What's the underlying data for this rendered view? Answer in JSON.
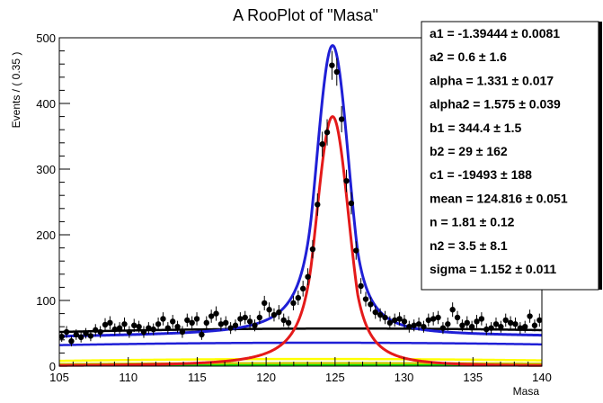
{
  "chart_data": {
    "type": "scatter",
    "title": "A RooPlot of \"Masa\"",
    "xlabel": "Masa",
    "ylabel": "Events / ( 0.35 )",
    "xlim": [
      105,
      140
    ],
    "ylim": [
      0,
      500
    ],
    "x_ticks": [
      "105",
      "110",
      "115",
      "120",
      "125",
      "130",
      "135",
      "140"
    ],
    "y_ticks": [
      "0",
      "100",
      "200",
      "300",
      "400",
      "500"
    ],
    "data": {
      "x": [
        105.175,
        105.525,
        105.875,
        106.225,
        106.575,
        106.925,
        107.275,
        107.625,
        107.975,
        108.325,
        108.675,
        109.025,
        109.375,
        109.725,
        110.075,
        110.425,
        110.775,
        111.125,
        111.475,
        111.825,
        112.175,
        112.525,
        112.875,
        113.225,
        113.575,
        113.925,
        114.275,
        114.625,
        114.975,
        115.325,
        115.675,
        116.025,
        116.375,
        116.725,
        117.075,
        117.425,
        117.775,
        118.125,
        118.475,
        118.825,
        119.175,
        119.525,
        119.875,
        120.225,
        120.575,
        120.925,
        121.275,
        121.625,
        121.975,
        122.325,
        122.675,
        123.025,
        123.375,
        123.725,
        124.075,
        124.425,
        124.775,
        125.125,
        125.475,
        125.825,
        126.175,
        126.525,
        126.875,
        127.225,
        127.575,
        127.925,
        128.275,
        128.625,
        128.975,
        129.325,
        129.675,
        130.025,
        130.375,
        130.725,
        131.075,
        131.425,
        131.775,
        132.125,
        132.475,
        132.825,
        133.175,
        133.525,
        133.875,
        134.225,
        134.575,
        134.925,
        135.275,
        135.625,
        135.975,
        136.325,
        136.675,
        137.025,
        137.375,
        137.725,
        138.075,
        138.425,
        138.775,
        139.125,
        139.475,
        139.825
      ],
      "y": [
        45,
        52,
        38,
        48,
        44,
        50,
        46,
        55,
        52,
        63,
        66,
        56,
        58,
        64,
        52,
        62,
        60,
        52,
        58,
        56,
        64,
        72,
        58,
        68,
        60,
        52,
        70,
        66,
        72,
        48,
        66,
        76,
        80,
        64,
        66,
        58,
        62,
        72,
        74,
        68,
        62,
        74,
        96,
        86,
        78,
        82,
        70,
        66,
        96,
        104,
        118,
        136,
        178,
        246,
        338,
        356,
        458,
        448,
        376,
        282,
        248,
        176,
        122,
        102,
        94,
        82,
        78,
        74,
        66,
        70,
        72,
        68,
        60,
        62,
        64,
        60,
        70,
        72,
        74,
        58,
        64,
        86,
        74,
        62,
        66,
        60,
        68,
        72,
        56,
        58,
        64,
        60,
        70,
        66,
        64,
        58,
        60,
        76,
        62,
        70
      ],
      "err": [
        8,
        9,
        8,
        8,
        8,
        8,
        8,
        9,
        9,
        10,
        10,
        9,
        9,
        10,
        9,
        10,
        9,
        9,
        9,
        9,
        10,
        10,
        9,
        10,
        9,
        9,
        10,
        10,
        10,
        8,
        10,
        10,
        11,
        10,
        10,
        9,
        9,
        10,
        10,
        10,
        9,
        10,
        11,
        11,
        10,
        11,
        10,
        10,
        11,
        11,
        12,
        13,
        14,
        17,
        19,
        20,
        22,
        21,
        20,
        17,
        17,
        14,
        12,
        11,
        11,
        10,
        10,
        10,
        10,
        10,
        10,
        10,
        9,
        9,
        10,
        9,
        10,
        10,
        10,
        9,
        10,
        11,
        10,
        9,
        10,
        9,
        10,
        10,
        9,
        9,
        10,
        9,
        10,
        10,
        10,
        9,
        9,
        10,
        9,
        10
      ]
    },
    "curves": [
      {
        "type": "total",
        "color": "#1f1fd6"
      },
      {
        "type": "signal",
        "color": "#e41a1a"
      },
      {
        "type": "background",
        "color": "#000000"
      },
      {
        "type": "background",
        "color": "#1f1fd6"
      },
      {
        "type": "background",
        "color": "#ffff00"
      },
      {
        "type": "background",
        "color": "#c8c800"
      },
      {
        "type": "background",
        "color": "#00dd00"
      }
    ],
    "stats": [
      {
        "name": "a1",
        "value": "-1.39444",
        "error": "0.0081"
      },
      {
        "name": "a2",
        "value": "0.6",
        "error": "1.6"
      },
      {
        "name": "alpha",
        "value": "1.331",
        "error": "0.017"
      },
      {
        "name": "alpha2",
        "value": "1.575",
        "error": "0.039"
      },
      {
        "name": "b1",
        "value": "344.4",
        "error": "1.5"
      },
      {
        "name": "b2",
        "value": "29",
        "error": "162"
      },
      {
        "name": "c1",
        "value": "-19493",
        "error": "188"
      },
      {
        "name": "mean",
        "value": "124.816",
        "error": "0.051"
      },
      {
        "name": "n",
        "value": "1.81",
        "error": "0.12"
      },
      {
        "name": "n2",
        "value": "3.5",
        "error": "8.1"
      },
      {
        "name": "sigma",
        "value": "1.152",
        "error": "0.011"
      }
    ]
  }
}
